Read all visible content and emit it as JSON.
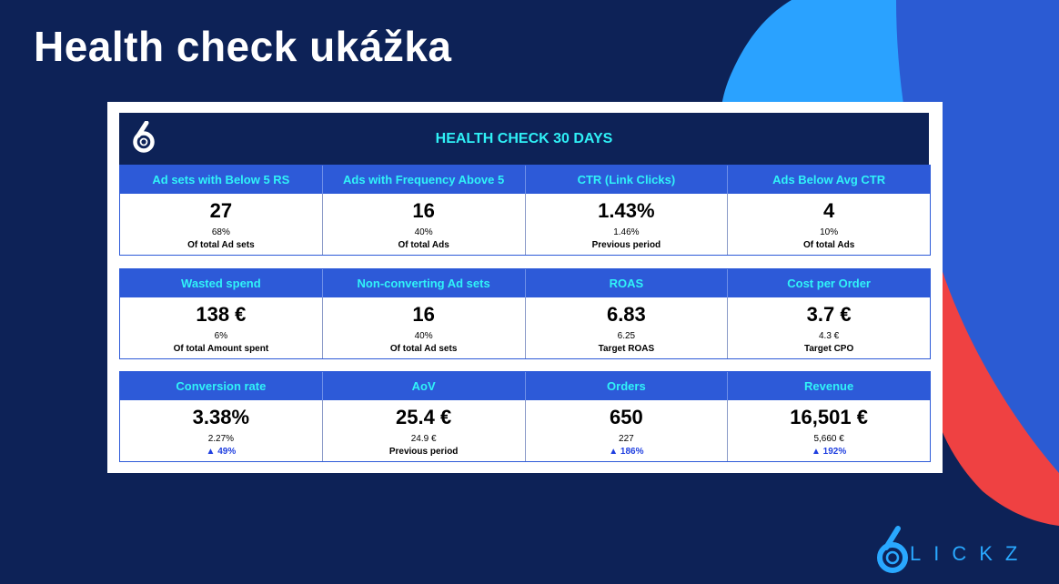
{
  "slide": {
    "title": "Health check ukážka"
  },
  "panel": {
    "title": "HEALTH CHECK 30 DAYS",
    "logo_icon": "six-clickz-logo-icon"
  },
  "rows": [
    {
      "cells": [
        {
          "label": "Ad sets with Below 5 RS",
          "value": "27",
          "sub": "68%",
          "note": "Of total Ad sets",
          "note_type": "text"
        },
        {
          "label": "Ads with Frequency Above 5",
          "value": "16",
          "sub": "40%",
          "note": "Of total Ads",
          "note_type": "text"
        },
        {
          "label": "CTR (Link Clicks)",
          "value": "1.43%",
          "sub": "1.46%",
          "note": "Previous period",
          "note_type": "text"
        },
        {
          "label": "Ads Below Avg CTR",
          "value": "4",
          "sub": "10%",
          "note": "Of total Ads",
          "note_type": "text"
        }
      ]
    },
    {
      "cells": [
        {
          "label": "Wasted spend",
          "value": "138 €",
          "sub": "6%",
          "note": "Of total Amount spent",
          "note_type": "text"
        },
        {
          "label": "Non-converting Ad sets",
          "value": "16",
          "sub": "40%",
          "note": "Of total Ad sets",
          "note_type": "text"
        },
        {
          "label": "ROAS",
          "value": "6.83",
          "sub": "6.25",
          "note": "Target ROAS",
          "note_type": "text"
        },
        {
          "label": "Cost per Order",
          "value": "3.7 €",
          "sub": "4.3 €",
          "note": "Target CPO",
          "note_type": "text"
        }
      ]
    },
    {
      "cells": [
        {
          "label": "Conversion rate",
          "value": "3.38%",
          "sub": "2.27%",
          "note": "▲ 49%",
          "note_type": "up"
        },
        {
          "label": "AoV",
          "value": "25.4 €",
          "sub": "24.9 €",
          "note": "Previous period",
          "note_type": "text"
        },
        {
          "label": "Orders",
          "value": "650",
          "sub": "227",
          "note": "▲ 186%",
          "note_type": "up"
        },
        {
          "label": "Revenue",
          "value": "16,501 €",
          "sub": "5,660 €",
          "note": "▲ 192%",
          "note_type": "up"
        }
      ]
    }
  ],
  "brand": {
    "text": "LICKZ",
    "logo_icon": "six-clickz-logo-icon"
  },
  "colors": {
    "background": "#0d2257",
    "header_bar": "#0d2257",
    "header_text": "#2ff0f6",
    "table_head": "#2d5ad8",
    "table_head_text": "#30f3f8",
    "up_indicator": "#1f3fe0",
    "accent_blue": "#2aa2ff",
    "accent_red": "#ef4142"
  }
}
